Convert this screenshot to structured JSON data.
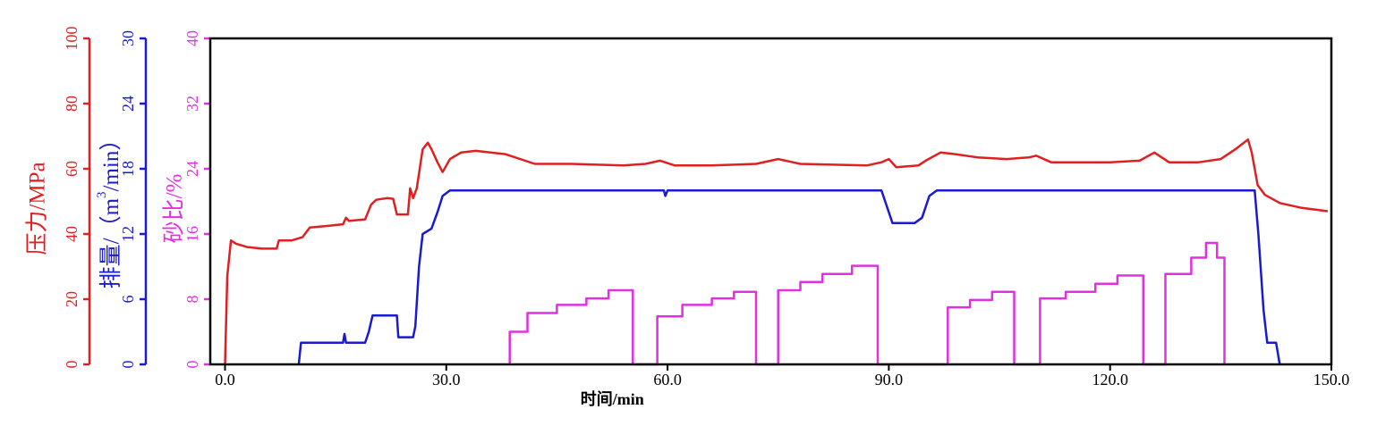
{
  "chart_data": {
    "type": "line",
    "xlabel": "时间/min",
    "xlim": [
      -2,
      150
    ],
    "x_ticks": [
      0,
      30,
      60,
      90,
      120,
      150
    ],
    "x_tick_labels": [
      "0.0",
      "30.0",
      "60.0",
      "90.0",
      "120.0",
      "150.0"
    ],
    "axes": [
      {
        "id": "pressure",
        "label": "压力/MPa",
        "color": "#e02020",
        "range": [
          0,
          100
        ],
        "ticks": [
          0,
          20,
          40,
          60,
          80,
          100
        ],
        "tick_labels": [
          "0",
          "20",
          "40",
          "60",
          "80",
          "100"
        ]
      },
      {
        "id": "rate",
        "label_main": "排量/（m",
        "label_sup": "3",
        "label_tail": "/min）",
        "color": "#1a1ad0",
        "range": [
          0,
          30
        ],
        "ticks": [
          0,
          6,
          12,
          18,
          24,
          30
        ],
        "tick_labels": [
          "0",
          "6",
          "12",
          "18",
          "24",
          "30"
        ]
      },
      {
        "id": "sand",
        "label": "砂比/%",
        "color": "#e030e0",
        "range": [
          0,
          40
        ],
        "ticks": [
          0,
          8,
          16,
          24,
          32,
          40
        ],
        "tick_labels": [
          "0",
          "8",
          "16",
          "24",
          "32",
          "40"
        ]
      }
    ],
    "series": [
      {
        "axis": "pressure",
        "color": "#e02020",
        "points": [
          [
            0,
            0
          ],
          [
            0.3,
            27
          ],
          [
            0.8,
            38
          ],
          [
            1.5,
            37
          ],
          [
            3,
            36
          ],
          [
            5,
            35.5
          ],
          [
            7,
            35.5
          ],
          [
            7.3,
            38
          ],
          [
            9,
            38
          ],
          [
            10.5,
            39
          ],
          [
            11.5,
            42
          ],
          [
            14,
            42.5
          ],
          [
            16,
            43
          ],
          [
            16.4,
            45
          ],
          [
            16.8,
            44
          ],
          [
            19,
            44.5
          ],
          [
            19.8,
            49
          ],
          [
            20.5,
            50.5
          ],
          [
            22,
            51
          ],
          [
            22.8,
            50.8
          ],
          [
            23.3,
            46
          ],
          [
            24.8,
            46
          ],
          [
            25.1,
            54
          ],
          [
            25.5,
            51
          ],
          [
            26,
            54
          ],
          [
            26.8,
            66
          ],
          [
            27.5,
            68
          ],
          [
            28,
            66
          ],
          [
            28.8,
            62
          ],
          [
            29.5,
            59
          ],
          [
            30.5,
            63
          ],
          [
            32,
            65
          ],
          [
            34,
            65.5
          ],
          [
            38,
            64.5
          ],
          [
            42,
            61.5
          ],
          [
            47,
            61.5
          ],
          [
            54,
            61
          ],
          [
            57,
            61.5
          ],
          [
            59,
            62.5
          ],
          [
            61,
            61
          ],
          [
            66,
            61
          ],
          [
            72,
            61.5
          ],
          [
            75,
            63
          ],
          [
            78,
            61.5
          ],
          [
            87,
            61
          ],
          [
            89,
            62
          ],
          [
            90,
            63
          ],
          [
            91,
            60.5
          ],
          [
            94,
            61
          ],
          [
            95,
            62.5
          ],
          [
            97,
            65
          ],
          [
            99,
            64.5
          ],
          [
            102,
            63.5
          ],
          [
            106,
            63
          ],
          [
            109,
            63.5
          ],
          [
            110,
            64
          ],
          [
            112,
            62
          ],
          [
            116,
            62
          ],
          [
            120,
            62
          ],
          [
            124,
            62.5
          ],
          [
            126,
            65
          ],
          [
            128,
            62
          ],
          [
            132,
            62
          ],
          [
            135,
            63
          ],
          [
            137,
            66
          ],
          [
            138.7,
            69
          ],
          [
            139.2,
            65
          ],
          [
            140,
            55
          ],
          [
            141,
            52
          ],
          [
            143,
            49.5
          ],
          [
            146,
            48
          ],
          [
            149.5,
            47
          ]
        ]
      },
      {
        "axis": "rate",
        "color": "#1a1ad0",
        "points": [
          [
            10,
            0
          ],
          [
            10.3,
            2
          ],
          [
            16,
            2
          ],
          [
            16.2,
            2.8
          ],
          [
            16.4,
            2
          ],
          [
            19,
            2
          ],
          [
            19.5,
            3
          ],
          [
            20,
            4.5
          ],
          [
            23.3,
            4.5
          ],
          [
            23.5,
            2.5
          ],
          [
            25.5,
            2.5
          ],
          [
            25.8,
            3.5
          ],
          [
            26.3,
            9
          ],
          [
            26.8,
            12
          ],
          [
            28,
            12.5
          ],
          [
            28.8,
            14
          ],
          [
            29.5,
            15.5
          ],
          [
            30.5,
            16
          ],
          [
            59.5,
            16
          ],
          [
            59.7,
            15.5
          ],
          [
            60,
            16
          ],
          [
            89,
            16
          ],
          [
            89.5,
            15
          ],
          [
            90.5,
            13
          ],
          [
            93.5,
            13
          ],
          [
            94.5,
            13.5
          ],
          [
            95.5,
            15.5
          ],
          [
            96.5,
            16
          ],
          [
            139.6,
            16
          ],
          [
            140.1,
            12
          ],
          [
            140.8,
            5
          ],
          [
            141.3,
            2
          ],
          [
            142.5,
            2
          ],
          [
            143,
            0
          ]
        ]
      },
      {
        "axis": "sand",
        "color": "#e030e0",
        "points": [
          [
            38.6,
            0
          ],
          [
            38.6,
            4
          ],
          [
            41,
            4
          ],
          [
            41,
            6.3
          ],
          [
            45,
            6.3
          ],
          [
            45,
            7.3
          ],
          [
            49,
            7.3
          ],
          [
            49,
            8.1
          ],
          [
            52,
            8.1
          ],
          [
            52,
            9.1
          ],
          [
            55.3,
            9.1
          ],
          [
            55.3,
            0
          ],
          [
            58.6,
            0
          ],
          [
            58.6,
            5.9
          ],
          [
            62,
            5.9
          ],
          [
            62,
            7.3
          ],
          [
            66,
            7.3
          ],
          [
            66,
            8.1
          ],
          [
            69,
            8.1
          ],
          [
            69,
            8.9
          ],
          [
            72,
            8.9
          ],
          [
            72,
            0
          ],
          [
            75,
            0
          ],
          [
            75,
            9.1
          ],
          [
            78,
            9.1
          ],
          [
            78,
            10.1
          ],
          [
            81,
            10.1
          ],
          [
            81,
            11.1
          ],
          [
            85,
            11.1
          ],
          [
            85,
            12.1
          ],
          [
            88.5,
            12.1
          ],
          [
            88.5,
            0
          ],
          [
            98,
            0
          ],
          [
            98,
            7
          ],
          [
            101,
            7
          ],
          [
            101,
            7.9
          ],
          [
            104,
            7.9
          ],
          [
            104,
            8.9
          ],
          [
            107,
            8.9
          ],
          [
            107,
            0
          ],
          [
            110.5,
            0
          ],
          [
            110.5,
            8.1
          ],
          [
            114,
            8.1
          ],
          [
            114,
            8.9
          ],
          [
            118,
            8.9
          ],
          [
            118,
            9.9
          ],
          [
            121,
            9.9
          ],
          [
            121,
            10.9
          ],
          [
            124.5,
            10.9
          ],
          [
            124.5,
            0
          ],
          [
            127.5,
            0
          ],
          [
            127.5,
            11.1
          ],
          [
            131,
            11.1
          ],
          [
            131,
            13.1
          ],
          [
            133,
            13.1
          ],
          [
            133,
            14.9
          ],
          [
            134.5,
            14.9
          ],
          [
            134.5,
            13.1
          ],
          [
            135.5,
            13.1
          ],
          [
            135.5,
            0
          ]
        ]
      }
    ]
  }
}
